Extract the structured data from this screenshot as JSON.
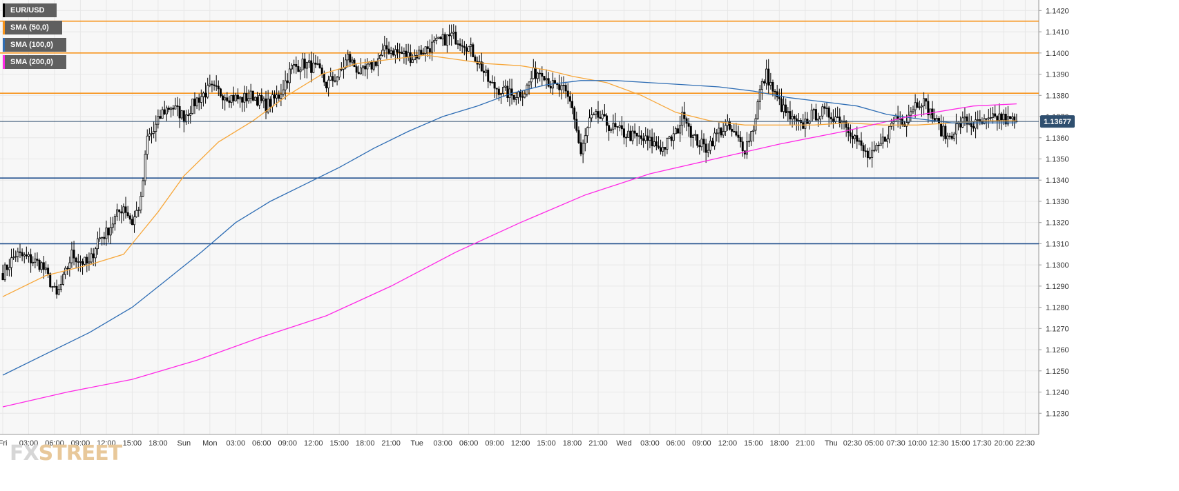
{
  "colors": {
    "background": "#f7f7f7",
    "grid": "#e7e7e7",
    "axis_text": "#333333",
    "resistance": "#f7931a",
    "support": "#1f4e8c",
    "sma50": "#f7a73a",
    "sma100": "#2e6db4",
    "sma200": "#ff28e6",
    "candle_up": "#ffffff",
    "candle_down": "#000000",
    "price_line": "#2f4f6f",
    "price_tag": "#2f4f6f"
  },
  "legend": [
    {
      "label": "EUR/USD",
      "color": "#000000"
    },
    {
      "label": "SMA (50,0)",
      "color": "#f7931a"
    },
    {
      "label": "SMA (100,0)",
      "color": "#2e6db4"
    },
    {
      "label": "SMA (200,0)",
      "color": "#ff28e6"
    }
  ],
  "logo": {
    "fx": "FX",
    "rest": "STREET"
  },
  "chart_data": {
    "type": "candlestick",
    "symbol": "EUR/USD",
    "timeframe": "15m",
    "ylim": [
      1.122,
      1.1425
    ],
    "y_ticks": [
      "1.1230",
      "1.1240",
      "1.1250",
      "1.1260",
      "1.1270",
      "1.1280",
      "1.1290",
      "1.1300",
      "1.1310",
      "1.1320",
      "1.1330",
      "1.1340",
      "1.1350",
      "1.1360",
      "1.1370",
      "1.1380",
      "1.1390",
      "1.1400",
      "1.1410",
      "1.1420"
    ],
    "x_ticks": [
      {
        "label": "Fri",
        "index": 0
      },
      {
        "label": "03:00",
        "index": 12
      },
      {
        "label": "06:00",
        "index": 24
      },
      {
        "label": "09:00",
        "index": 36
      },
      {
        "label": "12:00",
        "index": 48
      },
      {
        "label": "15:00",
        "index": 60
      },
      {
        "label": "18:00",
        "index": 72
      },
      {
        "label": "Sun",
        "index": 84
      },
      {
        "label": "Mon",
        "index": 96
      },
      {
        "label": "03:00",
        "index": 108
      },
      {
        "label": "06:00",
        "index": 120
      },
      {
        "label": "09:00",
        "index": 132
      },
      {
        "label": "12:00",
        "index": 144
      },
      {
        "label": "15:00",
        "index": 156
      },
      {
        "label": "18:00",
        "index": 168
      },
      {
        "label": "21:00",
        "index": 180
      },
      {
        "label": "Tue",
        "index": 192
      },
      {
        "label": "03:00",
        "index": 204
      },
      {
        "label": "06:00",
        "index": 216
      },
      {
        "label": "09:00",
        "index": 228
      },
      {
        "label": "12:00",
        "index": 240
      },
      {
        "label": "15:00",
        "index": 252
      },
      {
        "label": "18:00",
        "index": 264
      },
      {
        "label": "21:00",
        "index": 276
      },
      {
        "label": "Wed",
        "index": 288
      },
      {
        "label": "03:00",
        "index": 300
      },
      {
        "label": "06:00",
        "index": 312
      },
      {
        "label": "09:00",
        "index": 324
      },
      {
        "label": "12:00",
        "index": 336
      },
      {
        "label": "15:00",
        "index": 348
      },
      {
        "label": "18:00",
        "index": 360
      },
      {
        "label": "21:00",
        "index": 372
      },
      {
        "label": "Thu",
        "index": 384
      },
      {
        "label": "02:30",
        "index": 394
      },
      {
        "label": "05:00",
        "index": 404
      },
      {
        "label": "07:30",
        "index": 414
      },
      {
        "label": "10:00",
        "index": 424
      },
      {
        "label": "12:30",
        "index": 434
      },
      {
        "label": "15:00",
        "index": 444
      },
      {
        "label": "17:30",
        "index": 454
      },
      {
        "label": "20:00",
        "index": 464
      },
      {
        "label": "22:30",
        "index": 474
      }
    ],
    "bar_count": 480,
    "last_index": 470,
    "last_price": "1.13677",
    "last_price_value": 1.13677,
    "horizontal_levels": [
      {
        "kind": "resistance",
        "value": 1.1415
      },
      {
        "kind": "resistance",
        "value": 1.14
      },
      {
        "kind": "resistance",
        "value": 1.1381
      },
      {
        "kind": "support",
        "value": 1.1341
      },
      {
        "kind": "support",
        "value": 1.131
      }
    ],
    "path_keypoints": [
      [
        0,
        1.1296
      ],
      [
        6,
        1.1305
      ],
      [
        12,
        1.1303
      ],
      [
        18,
        1.13
      ],
      [
        22,
        1.1292
      ],
      [
        25,
        1.1285
      ],
      [
        28,
        1.1293
      ],
      [
        32,
        1.1305
      ],
      [
        36,
        1.1302
      ],
      [
        40,
        1.13
      ],
      [
        44,
        1.1312
      ],
      [
        48,
        1.1315
      ],
      [
        52,
        1.1322
      ],
      [
        56,
        1.1328
      ],
      [
        60,
        1.132
      ],
      [
        64,
        1.133
      ],
      [
        67,
        1.136
      ],
      [
        70,
        1.1363
      ],
      [
        74,
        1.1372
      ],
      [
        78,
        1.1375
      ],
      [
        84,
        1.137
      ],
      [
        90,
        1.1378
      ],
      [
        96,
        1.1383
      ],
      [
        104,
        1.138
      ],
      [
        110,
        1.1378
      ],
      [
        116,
        1.138
      ],
      [
        122,
        1.1375
      ],
      [
        128,
        1.138
      ],
      [
        134,
        1.1393
      ],
      [
        140,
        1.1395
      ],
      [
        146,
        1.1392
      ],
      [
        150,
        1.1385
      ],
      [
        156,
        1.139
      ],
      [
        160,
        1.1398
      ],
      [
        166,
        1.139
      ],
      [
        172,
        1.1395
      ],
      [
        178,
        1.1402
      ],
      [
        184,
        1.14
      ],
      [
        190,
        1.1398
      ],
      [
        196,
        1.1402
      ],
      [
        202,
        1.1405
      ],
      [
        208,
        1.1408
      ],
      [
        214,
        1.1405
      ],
      [
        218,
        1.14
      ],
      [
        222,
        1.1393
      ],
      [
        226,
        1.1385
      ],
      [
        232,
        1.1382
      ],
      [
        236,
        1.138
      ],
      [
        242,
        1.1382
      ],
      [
        246,
        1.139
      ],
      [
        250,
        1.1392
      ],
      [
        254,
        1.1385
      ],
      [
        260,
        1.1382
      ],
      [
        264,
        1.1375
      ],
      [
        268,
        1.1352
      ],
      [
        272,
        1.1368
      ],
      [
        276,
        1.137
      ],
      [
        282,
        1.1365
      ],
      [
        288,
        1.1362
      ],
      [
        294,
        1.136
      ],
      [
        300,
        1.1358
      ],
      [
        306,
        1.1355
      ],
      [
        312,
        1.1362
      ],
      [
        316,
        1.1372
      ],
      [
        320,
        1.136
      ],
      [
        326,
        1.1355
      ],
      [
        332,
        1.1363
      ],
      [
        336,
        1.1365
      ],
      [
        340,
        1.136
      ],
      [
        344,
        1.1355
      ],
      [
        348,
        1.1365
      ],
      [
        351,
        1.1382
      ],
      [
        354,
        1.139
      ],
      [
        358,
        1.138
      ],
      [
        362,
        1.1373
      ],
      [
        366,
        1.1368
      ],
      [
        370,
        1.1365
      ],
      [
        374,
        1.137
      ],
      [
        380,
        1.1372
      ],
      [
        386,
        1.137
      ],
      [
        390,
        1.1368
      ],
      [
        394,
        1.1362
      ],
      [
        398,
        1.1355
      ],
      [
        402,
        1.135
      ],
      [
        406,
        1.1355
      ],
      [
        410,
        1.1362
      ],
      [
        414,
        1.137
      ],
      [
        418,
        1.1368
      ],
      [
        422,
        1.1375
      ],
      [
        426,
        1.1378
      ],
      [
        430,
        1.1372
      ],
      [
        434,
        1.1365
      ],
      [
        438,
        1.136
      ],
      [
        442,
        1.1365
      ],
      [
        446,
        1.1368
      ],
      [
        450,
        1.1366
      ],
      [
        456,
        1.1367
      ],
      [
        462,
        1.137
      ],
      [
        466,
        1.1368
      ],
      [
        470,
        1.1368
      ]
    ],
    "sma50_points": [
      [
        0,
        1.1285
      ],
      [
        20,
        1.1295
      ],
      [
        40,
        1.13
      ],
      [
        56,
        1.1305
      ],
      [
        64,
        1.1315
      ],
      [
        72,
        1.1325
      ],
      [
        84,
        1.1342
      ],
      [
        100,
        1.1358
      ],
      [
        116,
        1.1368
      ],
      [
        132,
        1.138
      ],
      [
        148,
        1.139
      ],
      [
        164,
        1.1395
      ],
      [
        180,
        1.1397
      ],
      [
        196,
        1.1399
      ],
      [
        210,
        1.1397
      ],
      [
        224,
        1.1395
      ],
      [
        240,
        1.1394
      ],
      [
        252,
        1.1392
      ],
      [
        264,
        1.1389
      ],
      [
        280,
        1.1386
      ],
      [
        296,
        1.138
      ],
      [
        312,
        1.1372
      ],
      [
        328,
        1.1368
      ],
      [
        344,
        1.1366
      ],
      [
        360,
        1.1366
      ],
      [
        376,
        1.1366
      ],
      [
        392,
        1.1367
      ],
      [
        408,
        1.1366
      ],
      [
        424,
        1.1366
      ],
      [
        440,
        1.1367
      ],
      [
        456,
        1.1368
      ],
      [
        470,
        1.1368
      ]
    ],
    "sma100_points": [
      [
        0,
        1.1248
      ],
      [
        20,
        1.1258
      ],
      [
        40,
        1.1268
      ],
      [
        60,
        1.128
      ],
      [
        76,
        1.1293
      ],
      [
        92,
        1.1306
      ],
      [
        108,
        1.132
      ],
      [
        124,
        1.133
      ],
      [
        140,
        1.1338
      ],
      [
        156,
        1.1346
      ],
      [
        172,
        1.1355
      ],
      [
        188,
        1.1363
      ],
      [
        204,
        1.137
      ],
      [
        220,
        1.1375
      ],
      [
        236,
        1.1381
      ],
      [
        252,
        1.1385
      ],
      [
        268,
        1.1387
      ],
      [
        284,
        1.1387
      ],
      [
        300,
        1.1386
      ],
      [
        316,
        1.1385
      ],
      [
        332,
        1.1384
      ],
      [
        348,
        1.1382
      ],
      [
        364,
        1.1379
      ],
      [
        380,
        1.1377
      ],
      [
        396,
        1.1375
      ],
      [
        410,
        1.1371
      ],
      [
        424,
        1.1369
      ],
      [
        440,
        1.1367
      ],
      [
        456,
        1.1367
      ],
      [
        470,
        1.1367
      ]
    ],
    "sma200_points": [
      [
        0,
        1.1233
      ],
      [
        30,
        1.124
      ],
      [
        60,
        1.1246
      ],
      [
        90,
        1.1255
      ],
      [
        120,
        1.1266
      ],
      [
        150,
        1.1276
      ],
      [
        180,
        1.129
      ],
      [
        210,
        1.1306
      ],
      [
        240,
        1.132
      ],
      [
        270,
        1.1333
      ],
      [
        300,
        1.1343
      ],
      [
        330,
        1.135
      ],
      [
        360,
        1.1357
      ],
      [
        390,
        1.1363
      ],
      [
        420,
        1.137
      ],
      [
        450,
        1.1375
      ],
      [
        470,
        1.1376
      ]
    ]
  }
}
